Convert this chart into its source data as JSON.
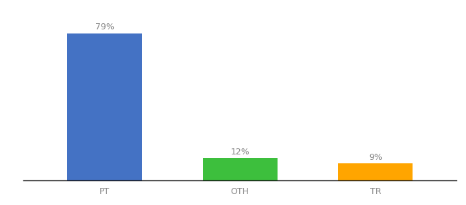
{
  "categories": [
    "PT",
    "OTH",
    "TR"
  ],
  "values": [
    79,
    12,
    9
  ],
  "bar_colors": [
    "#4472C4",
    "#3DBF3D",
    "#FFA500"
  ],
  "labels": [
    "79%",
    "12%",
    "9%"
  ],
  "background_color": "#ffffff",
  "label_color": "#888888",
  "label_fontsize": 9,
  "tick_fontsize": 9,
  "ylim": [
    0,
    88
  ],
  "xlim": [
    -0.6,
    2.6
  ],
  "bar_width": 0.55,
  "x_positions": [
    0,
    1,
    2
  ]
}
